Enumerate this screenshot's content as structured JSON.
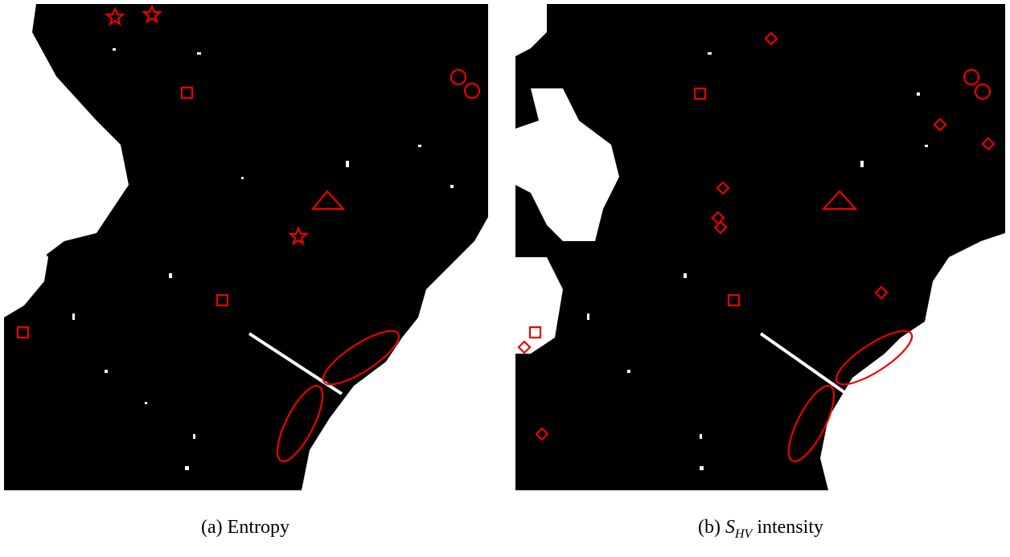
{
  "captions": [
    {
      "label": "(a)",
      "text": "Entropy"
    },
    {
      "label": "(b)",
      "symbol": "S",
      "subscript": "HV",
      "text": "intensity"
    }
  ]
}
